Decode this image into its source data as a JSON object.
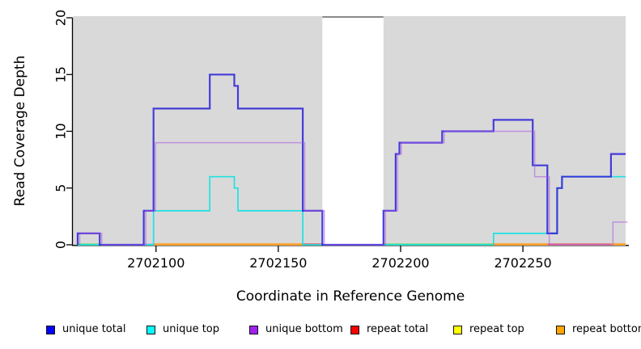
{
  "page": {
    "background": "#ffffff"
  },
  "chart_data": {
    "type": "step-line",
    "title": "",
    "xlabel": "Coordinate in Reference Genome",
    "ylabel": "Read Coverage Depth",
    "xlim": [
      2702066,
      2702292
    ],
    "ylim": [
      0,
      20
    ],
    "xticks": [
      2702100,
      2702150,
      2702200,
      2702250
    ],
    "yticks": [
      0,
      5,
      10,
      15,
      20
    ],
    "grid": "off",
    "plot_bg": "#d9d9d9",
    "axis_color": "#000000",
    "masked_region": {
      "from": 2702168,
      "to": 2702193,
      "fill": "#ffffff",
      "top_line_color": "#8a8a8a",
      "top_value": 20
    },
    "series": [
      {
        "name": "repeat total",
        "legend_swatch": "#ff0000",
        "line_color": "#ec6d6d",
        "width": 1.5,
        "points": [
          [
            2702068,
            0
          ],
          [
            2702292,
            0
          ]
        ]
      },
      {
        "name": "repeat top",
        "legend_swatch": "#ffff00",
        "line_color": "#ecec6d",
        "width": 1.5,
        "points": [
          [
            2702068,
            0
          ],
          [
            2702292,
            0
          ]
        ]
      },
      {
        "name": "repeat bottom",
        "legend_swatch": "#ffa500",
        "line_color": "#ecbf6d",
        "width": 1.5,
        "points": [
          [
            2702068,
            0
          ],
          [
            2702292,
            0
          ]
        ]
      },
      {
        "name": "unique top",
        "legend_swatch": "#00ffff",
        "line_color": "rgba(0,226,226,0.85)",
        "width": 1.7,
        "points": [
          [
            2702068,
            0
          ],
          [
            2702099,
            3
          ],
          [
            2702122,
            6
          ],
          [
            2702132,
            5
          ],
          [
            2702133.5,
            3
          ],
          [
            2702160,
            0
          ],
          [
            2702238,
            1
          ],
          [
            2702264,
            5
          ],
          [
            2702266,
            6
          ],
          [
            2702292,
            6
          ]
        ]
      },
      {
        "name": "unique total",
        "legend_swatch": "#0000ff",
        "line_color": "rgba(48,38,216,0.88)",
        "width": 2.2,
        "points": [
          [
            2702068,
            1
          ],
          [
            2702077,
            0
          ],
          [
            2702095,
            3
          ],
          [
            2702099,
            12
          ],
          [
            2702122,
            15
          ],
          [
            2702132,
            14
          ],
          [
            2702133.5,
            12
          ],
          [
            2702160,
            3
          ],
          [
            2702168,
            0
          ],
          [
            2702193,
            3
          ],
          [
            2702198,
            8
          ],
          [
            2702199.5,
            9
          ],
          [
            2702217,
            10
          ],
          [
            2702238,
            11
          ],
          [
            2702254,
            7
          ],
          [
            2702260,
            1
          ],
          [
            2702264,
            5
          ],
          [
            2702266,
            6
          ],
          [
            2702286,
            8
          ],
          [
            2702292,
            8
          ]
        ]
      },
      {
        "name": "unique bottom",
        "legend_swatch": "#a020f0",
        "line_color": "rgba(170,85,225,0.55)",
        "width": 1.5,
        "points": [
          [
            2702068,
            1
          ],
          [
            2702077,
            0
          ],
          [
            2702095,
            3
          ],
          [
            2702099,
            9
          ],
          [
            2702160,
            3
          ],
          [
            2702168,
            0
          ],
          [
            2702193,
            3
          ],
          [
            2702198,
            8
          ],
          [
            2702199.5,
            9
          ],
          [
            2702217,
            10
          ],
          [
            2702254,
            6
          ],
          [
            2702260,
            0
          ],
          [
            2702286,
            2
          ],
          [
            2702292,
            2
          ]
        ]
      }
    ],
    "baseline_overlap_segments": [
      {
        "from": 2702068,
        "to": 2702077,
        "color": "#85d77c"
      },
      {
        "from": 2702095,
        "to": 2702099,
        "color": "#cfaee8"
      },
      {
        "from": 2702099,
        "to": 2702160,
        "color": "#ff9e1f"
      },
      {
        "from": 2702160,
        "to": 2702168,
        "color": "#e4687e"
      },
      {
        "from": 2702193,
        "to": 2702237,
        "color": "#85d77c"
      },
      {
        "from": 2702237,
        "to": 2702260,
        "color": "#ff9e1f"
      },
      {
        "from": 2702260,
        "to": 2702286,
        "color": "#e4687e"
      },
      {
        "from": 2702286,
        "to": 2702292,
        "color": "#ff9e1f"
      }
    ],
    "legend": {
      "position": "bottom",
      "items": [
        {
          "label": "unique total",
          "swatch": "#0000ff"
        },
        {
          "label": "unique top",
          "swatch": "#00ffff"
        },
        {
          "label": "unique bottom",
          "swatch": "#a020f0"
        },
        {
          "label": "repeat total",
          "swatch": "#ff0000"
        },
        {
          "label": "repeat top",
          "swatch": "#ffff00"
        },
        {
          "label": "repeat bottom",
          "swatch": "#ffa500"
        }
      ]
    }
  }
}
